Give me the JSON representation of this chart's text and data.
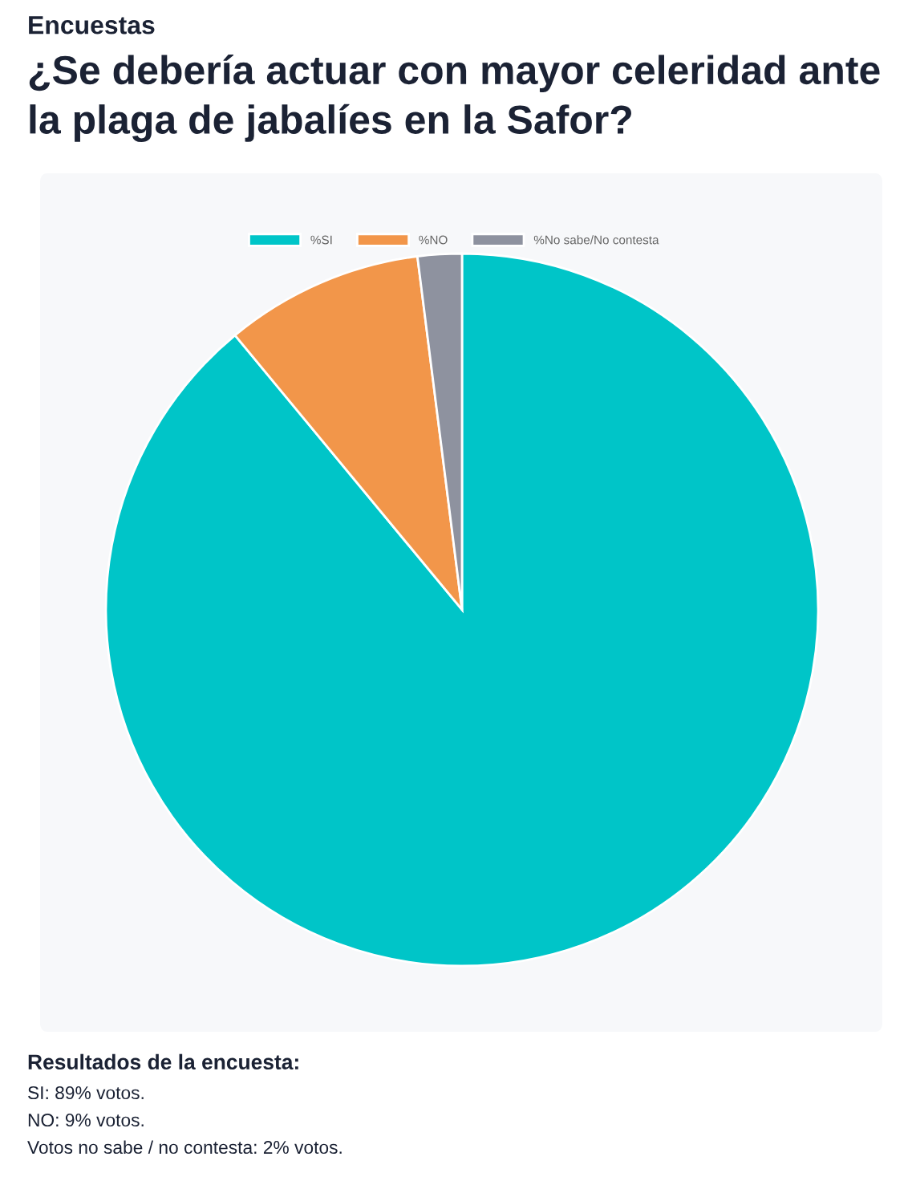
{
  "chart_data": {
    "type": "pie",
    "subtitle": "Encuestas",
    "title": "¿Se debería actuar con mayor celeridad ante la plaga de jabalíes en la Safor?",
    "categories": [
      "%SI",
      "%NO",
      "%No sabe/No contesta"
    ],
    "values": [
      89,
      9,
      2
    ],
    "colors": [
      "#00c5c8",
      "#f2964a",
      "#8e929f"
    ],
    "legend": "top",
    "annotations": [
      "Resultados de la encuesta:",
      "SI: 89% votos.",
      "NO: 9% votos.",
      "Votos no sabe / no contesta: 2% votos."
    ]
  }
}
